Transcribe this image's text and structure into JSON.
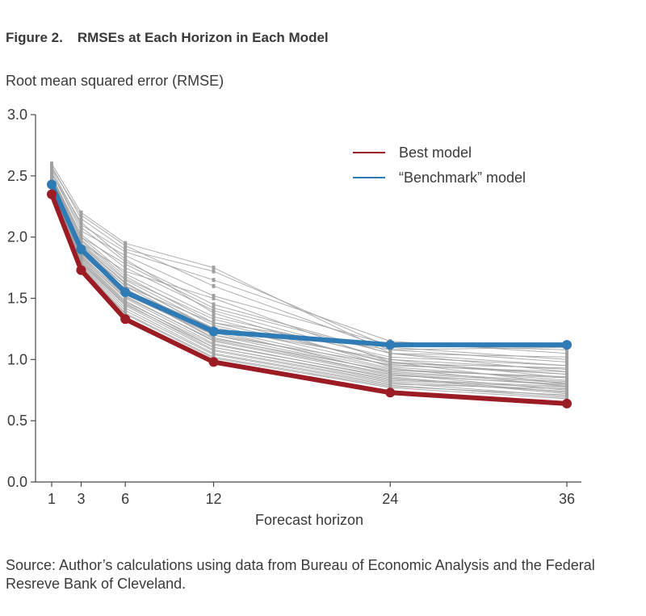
{
  "figure": {
    "number": "Figure 2.",
    "title": "RMSEs at Each Horizon in Each Model",
    "source": "Source: Author’s calculations using data from Bureau of Economic Analysis and the Federal Resreve Bank of Cleveland."
  },
  "colors": {
    "best": "#9b1c24",
    "benchmark": "#2f7bb5",
    "others": "#a0a0a0",
    "axis": "#4a4a4a"
  },
  "chart_data": {
    "type": "line",
    "title": "RMSEs at Each Horizon in Each Model",
    "xlabel": "Forecast horizon",
    "ylabel": "Root mean squared error (RMSE)",
    "x": [
      1,
      3,
      6,
      12,
      24,
      36
    ],
    "xticks": [
      "1",
      "3",
      "6",
      "12",
      "24",
      "36"
    ],
    "ylim": [
      0,
      3
    ],
    "yticks": [
      "0.0",
      "0.5",
      "1.0",
      "1.5",
      "2.0",
      "2.5",
      "3.0"
    ],
    "grid": false,
    "legend_position": "top-right",
    "series": [
      {
        "name": "Best model",
        "role": "best",
        "values": [
          2.35,
          1.73,
          1.33,
          0.98,
          0.73,
          0.64
        ]
      },
      {
        "name": "“Benchmark” model",
        "role": "benchmark",
        "values": [
          2.43,
          1.9,
          1.55,
          1.23,
          1.12,
          1.12
        ]
      }
    ],
    "other_models": [
      [
        2.6,
        2.2,
        1.95,
        1.75,
        1.05,
        0.95
      ],
      [
        2.58,
        2.15,
        1.9,
        1.72,
        1.1,
        1.0
      ],
      [
        2.55,
        2.1,
        1.88,
        1.65,
        1.15,
        1.05
      ],
      [
        2.56,
        2.18,
        1.93,
        1.6,
        1.08,
        0.98
      ],
      [
        2.53,
        2.05,
        1.85,
        1.52,
        1.12,
        1.08
      ],
      [
        2.52,
        2.08,
        1.8,
        1.45,
        1.05,
        0.9
      ],
      [
        2.5,
        2.02,
        1.75,
        1.4,
        1.0,
        0.85
      ],
      [
        2.49,
        2.0,
        1.7,
        1.35,
        1.02,
        0.95
      ],
      [
        2.48,
        1.98,
        1.68,
        1.3,
        0.98,
        0.8
      ],
      [
        2.47,
        1.95,
        1.65,
        1.28,
        0.95,
        0.9
      ],
      [
        2.46,
        1.93,
        1.62,
        1.25,
        0.93,
        0.78
      ],
      [
        2.45,
        1.9,
        1.6,
        1.22,
        0.92,
        0.85
      ],
      [
        2.44,
        1.88,
        1.58,
        1.2,
        0.9,
        0.82
      ],
      [
        2.43,
        1.86,
        1.55,
        1.18,
        0.88,
        0.75
      ],
      [
        2.42,
        1.85,
        1.52,
        1.15,
        0.87,
        0.8
      ],
      [
        2.41,
        1.83,
        1.5,
        1.13,
        0.85,
        0.72
      ],
      [
        2.4,
        1.82,
        1.48,
        1.1,
        0.84,
        0.78
      ],
      [
        2.39,
        1.8,
        1.46,
        1.08,
        0.82,
        0.74
      ],
      [
        2.38,
        1.79,
        1.44,
        1.07,
        0.81,
        0.7
      ],
      [
        2.38,
        1.78,
        1.42,
        1.05,
        0.8,
        0.76
      ],
      [
        2.37,
        1.77,
        1.4,
        1.04,
        0.79,
        0.69
      ],
      [
        2.37,
        1.76,
        1.38,
        1.02,
        0.78,
        0.71
      ],
      [
        2.36,
        1.75,
        1.37,
        1.01,
        0.77,
        0.68
      ],
      [
        2.45,
        1.95,
        1.72,
        1.5,
        0.98,
        0.88
      ],
      [
        2.5,
        2.0,
        1.78,
        1.42,
        1.05,
        1.02
      ],
      [
        2.47,
        1.92,
        1.6,
        1.3,
        1.08,
        1.1
      ],
      [
        2.44,
        1.88,
        1.57,
        1.26,
        1.0,
        0.92
      ],
      [
        2.42,
        1.84,
        1.53,
        1.2,
        0.96,
        0.88
      ],
      [
        2.52,
        2.12,
        1.82,
        1.38,
        0.94,
        0.83
      ],
      [
        2.4,
        1.81,
        1.47,
        1.12,
        0.86,
        0.73
      ],
      [
        2.39,
        1.79,
        1.45,
        1.1,
        0.83,
        0.77
      ],
      [
        2.43,
        1.87,
        1.56,
        1.17,
        0.91,
        0.86
      ],
      [
        2.46,
        1.94,
        1.63,
        1.24,
        0.89,
        0.81
      ],
      [
        2.48,
        1.97,
        1.66,
        1.33,
        0.97,
        0.93
      ],
      [
        2.41,
        1.83,
        1.51,
        1.16,
        0.88,
        0.79
      ]
    ]
  }
}
